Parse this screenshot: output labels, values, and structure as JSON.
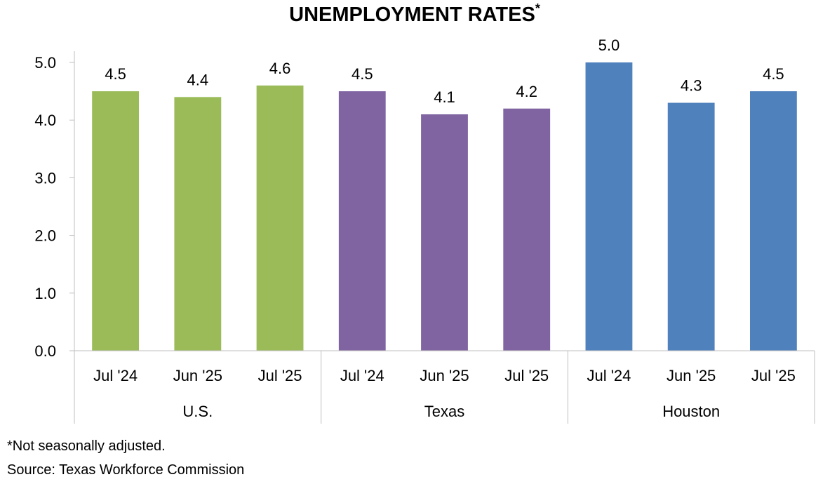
{
  "chart_data": {
    "type": "bar",
    "title": "UNEMPLOYMENT RATES",
    "title_superscript": "*",
    "ylim": [
      0,
      5.0
    ],
    "yticks": [
      "0.0",
      "1.0",
      "2.0",
      "3.0",
      "4.0",
      "5.0"
    ],
    "grid": false,
    "groups": [
      {
        "name": "U.S.",
        "color": "#9BBB59",
        "categories": [
          "Jul '24",
          "Jun '25",
          "Jul '25"
        ],
        "values": [
          4.5,
          4.4,
          4.6
        ],
        "labels": [
          "4.5",
          "4.4",
          "4.6"
        ]
      },
      {
        "name": "Texas",
        "color": "#8064A2",
        "categories": [
          "Jul '24",
          "Jun '25",
          "Jul '25"
        ],
        "values": [
          4.5,
          4.1,
          4.2
        ],
        "labels": [
          "4.5",
          "4.1",
          "4.2"
        ]
      },
      {
        "name": "Houston",
        "color": "#4F81BD",
        "categories": [
          "Jul '24",
          "Jun '25",
          "Jul '25"
        ],
        "values": [
          5.0,
          4.3,
          4.5
        ],
        "labels": [
          "5.0",
          "4.3",
          "4.5"
        ]
      }
    ]
  },
  "footnote": "*Not seasonally adjusted.",
  "source": "Source: Texas Workforce Commission"
}
